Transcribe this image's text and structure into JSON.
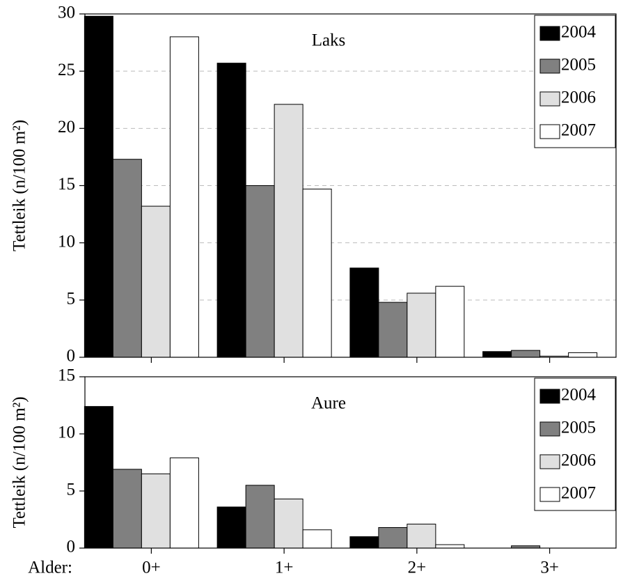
{
  "chart_data": [
    {
      "type": "bar",
      "subtitle": "Laks",
      "ylabel": "Tettleik (n/100 m²)",
      "categories": [
        null,
        null,
        null,
        null
      ],
      "series": [
        {
          "name": "2004",
          "color": "#000000",
          "values": [
            29.8,
            25.7,
            7.8,
            0.5
          ]
        },
        {
          "name": "2005",
          "color": "#808080",
          "values": [
            17.3,
            15.0,
            4.8,
            0.6
          ]
        },
        {
          "name": "2006",
          "color": "#e0e0e0",
          "values": [
            13.2,
            22.1,
            5.6,
            0.1
          ]
        },
        {
          "name": "2007",
          "color": "#ffffff",
          "values": [
            28.0,
            14.7,
            6.2,
            0.4
          ]
        }
      ],
      "ylim": [
        0,
        30
      ],
      "yticks": [
        0,
        5,
        10,
        15,
        20,
        25,
        30
      ],
      "grid": true,
      "legend": "upper right"
    },
    {
      "type": "bar",
      "subtitle": "Aure",
      "ylabel": "Tettleik (n/100 m²)",
      "xlabel": "Alder:",
      "categories": [
        "0+",
        "1+",
        "2+",
        "3+"
      ],
      "series": [
        {
          "name": "2004",
          "color": "#000000",
          "values": [
            12.4,
            3.6,
            1.0,
            0
          ]
        },
        {
          "name": "2005",
          "color": "#808080",
          "values": [
            6.9,
            5.5,
            1.8,
            0.2
          ]
        },
        {
          "name": "2006",
          "color": "#e0e0e0",
          "values": [
            6.5,
            4.3,
            2.1,
            0
          ]
        },
        {
          "name": "2007",
          "color": "#ffffff",
          "values": [
            7.9,
            1.6,
            0.3,
            0
          ]
        }
      ],
      "ylim": [
        0,
        15
      ],
      "yticks": [
        0,
        5,
        10,
        15
      ],
      "grid": false,
      "legend": "upper right"
    }
  ]
}
